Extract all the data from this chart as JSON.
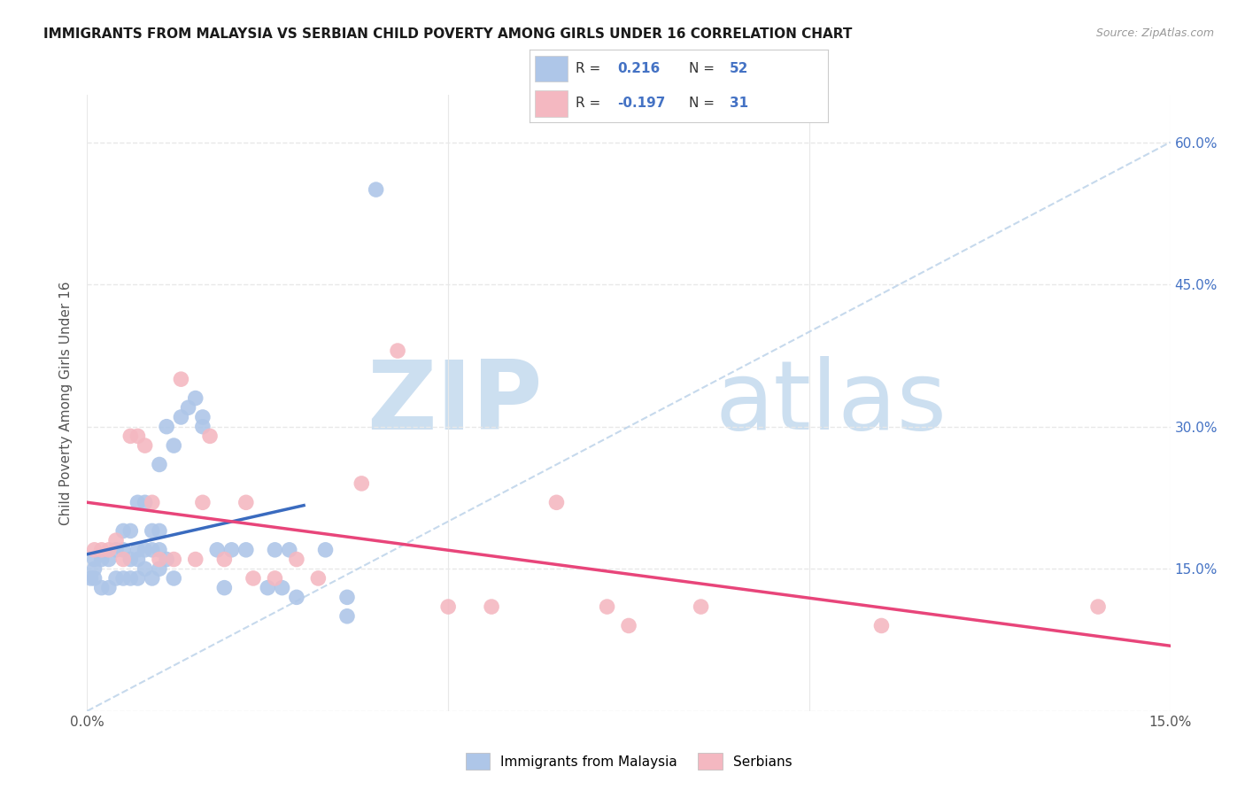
{
  "title": "IMMIGRANTS FROM MALAYSIA VS SERBIAN CHILD POVERTY AMONG GIRLS UNDER 16 CORRELATION CHART",
  "source": "Source: ZipAtlas.com",
  "ylabel": "Child Poverty Among Girls Under 16",
  "xlim": [
    0.0,
    0.15
  ],
  "ylim": [
    0.0,
    0.65
  ],
  "x_ticks": [
    0.0,
    0.05,
    0.1,
    0.15
  ],
  "x_tick_labels": [
    "0.0%",
    "",
    "",
    "15.0%"
  ],
  "y_ticks": [
    0.0,
    0.15,
    0.3,
    0.45,
    0.6
  ],
  "y_tick_labels_right": [
    "",
    "15.0%",
    "30.0%",
    "45.0%",
    "60.0%"
  ],
  "malaysia_color": "#aec6e8",
  "serbian_color": "#f4b8c1",
  "malaysia_line_color": "#3a6bbf",
  "serbian_line_color": "#e8457a",
  "ref_line_color": "#b8d0e8",
  "R_malaysia": "0.216",
  "N_malaysia": "52",
  "R_serbian": "-0.197",
  "N_serbian": "31",
  "legend_label_malaysia": "Immigrants from Malaysia",
  "legend_label_serbian": "Serbians",
  "watermark_zip": "ZIP",
  "watermark_atlas": "atlas",
  "malaysia_x": [
    0.0005,
    0.001,
    0.001,
    0.001,
    0.002,
    0.002,
    0.003,
    0.003,
    0.004,
    0.004,
    0.005,
    0.005,
    0.005,
    0.006,
    0.006,
    0.006,
    0.007,
    0.007,
    0.007,
    0.007,
    0.008,
    0.008,
    0.008,
    0.009,
    0.009,
    0.009,
    0.01,
    0.01,
    0.01,
    0.01,
    0.011,
    0.011,
    0.012,
    0.012,
    0.013,
    0.014,
    0.015,
    0.016,
    0.016,
    0.018,
    0.019,
    0.02,
    0.022,
    0.025,
    0.026,
    0.027,
    0.028,
    0.029,
    0.033,
    0.036,
    0.036,
    0.04
  ],
  "malaysia_y": [
    0.14,
    0.14,
    0.15,
    0.16,
    0.13,
    0.16,
    0.13,
    0.16,
    0.14,
    0.17,
    0.14,
    0.17,
    0.19,
    0.14,
    0.16,
    0.19,
    0.14,
    0.16,
    0.17,
    0.22,
    0.15,
    0.17,
    0.22,
    0.14,
    0.17,
    0.19,
    0.15,
    0.17,
    0.19,
    0.26,
    0.16,
    0.3,
    0.14,
    0.28,
    0.31,
    0.32,
    0.33,
    0.3,
    0.31,
    0.17,
    0.13,
    0.17,
    0.17,
    0.13,
    0.17,
    0.13,
    0.17,
    0.12,
    0.17,
    0.12,
    0.1,
    0.55
  ],
  "serbian_x": [
    0.001,
    0.002,
    0.003,
    0.004,
    0.005,
    0.006,
    0.007,
    0.008,
    0.009,
    0.01,
    0.012,
    0.013,
    0.015,
    0.016,
    0.017,
    0.019,
    0.022,
    0.023,
    0.026,
    0.029,
    0.032,
    0.038,
    0.043,
    0.05,
    0.056,
    0.065,
    0.072,
    0.075,
    0.085,
    0.11,
    0.14
  ],
  "serbian_y": [
    0.17,
    0.17,
    0.17,
    0.18,
    0.16,
    0.29,
    0.29,
    0.28,
    0.22,
    0.16,
    0.16,
    0.35,
    0.16,
    0.22,
    0.29,
    0.16,
    0.22,
    0.14,
    0.14,
    0.16,
    0.14,
    0.24,
    0.38,
    0.11,
    0.11,
    0.22,
    0.11,
    0.09,
    0.11,
    0.09,
    0.11
  ],
  "background_color": "#ffffff",
  "grid_color": "#e8e8e8"
}
